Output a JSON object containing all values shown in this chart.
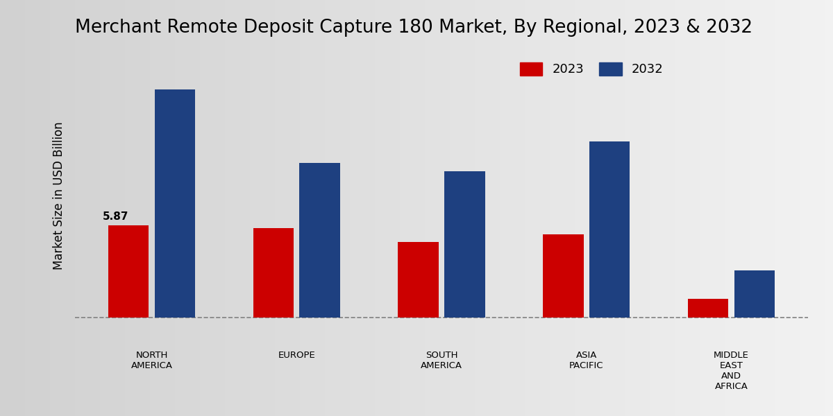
{
  "title": "Merchant Remote Deposit Capture 180 Market, By Regional, 2023 & 2032",
  "ylabel": "Market Size in USD Billion",
  "categories": [
    "NORTH\nAMERICA",
    "EUROPE",
    "SOUTH\nAMERICA",
    "ASIA\nPACIFIC",
    "MIDDLE\nEAST\nAND\nAFRICA"
  ],
  "values_2023": [
    5.87,
    5.7,
    4.8,
    5.3,
    1.2
  ],
  "values_2032": [
    14.5,
    9.8,
    9.3,
    11.2,
    3.0
  ],
  "color_2023": "#cc0000",
  "color_2032": "#1e4080",
  "bar_width": 0.28,
  "annotation_text": "5.87",
  "background_color": "#e0e0e0",
  "legend_labels": [
    "2023",
    "2032"
  ],
  "dashed_line_y": 0,
  "title_fontsize": 19,
  "axis_label_fontsize": 12,
  "tick_label_fontsize": 9.5,
  "ylim_min": -1.5,
  "ylim_max": 17
}
